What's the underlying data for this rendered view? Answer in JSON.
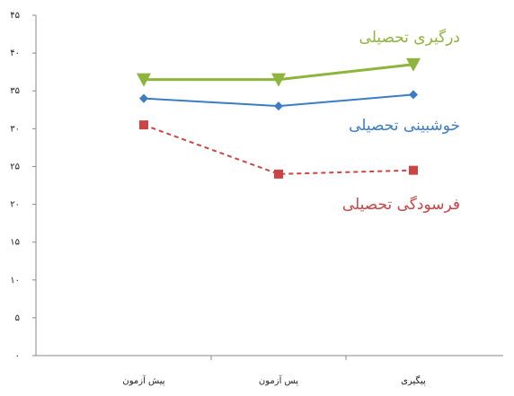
{
  "chart_data": {
    "type": "line",
    "categories": [
      "پیش آزمون",
      "پس آزمون",
      "پیگیری"
    ],
    "series": [
      {
        "name": "درگیری تحصیلی",
        "color": "#8db43c",
        "marker": "triangle",
        "dash": false,
        "values": [
          36.5,
          36.5,
          38.5
        ]
      },
      {
        "name": "خوشبینی تحصیلی",
        "color": "#3b7cc4",
        "marker": "diamond",
        "dash": false,
        "values": [
          34,
          33,
          34.5
        ]
      },
      {
        "name": "فرسودگی تحصیلی",
        "color": "#cc4444",
        "marker": "square",
        "dash": true,
        "values": [
          30.5,
          24,
          24.5
        ]
      }
    ],
    "ylim": [
      0,
      45
    ],
    "yticks": [
      {
        "value": 0,
        "label": "۰"
      },
      {
        "value": 5,
        "label": "۵"
      },
      {
        "value": 10,
        "label": "۱۰"
      },
      {
        "value": 15,
        "label": "۱۵"
      },
      {
        "value": 20,
        "label": "۲۰"
      },
      {
        "value": 25,
        "label": "۲۵"
      },
      {
        "value": 30,
        "label": "۳۰"
      },
      {
        "value": 35,
        "label": "۳۵"
      },
      {
        "value": 40,
        "label": "۴۰"
      },
      {
        "value": 45,
        "label": "۴۵"
      }
    ],
    "grid": false
  }
}
